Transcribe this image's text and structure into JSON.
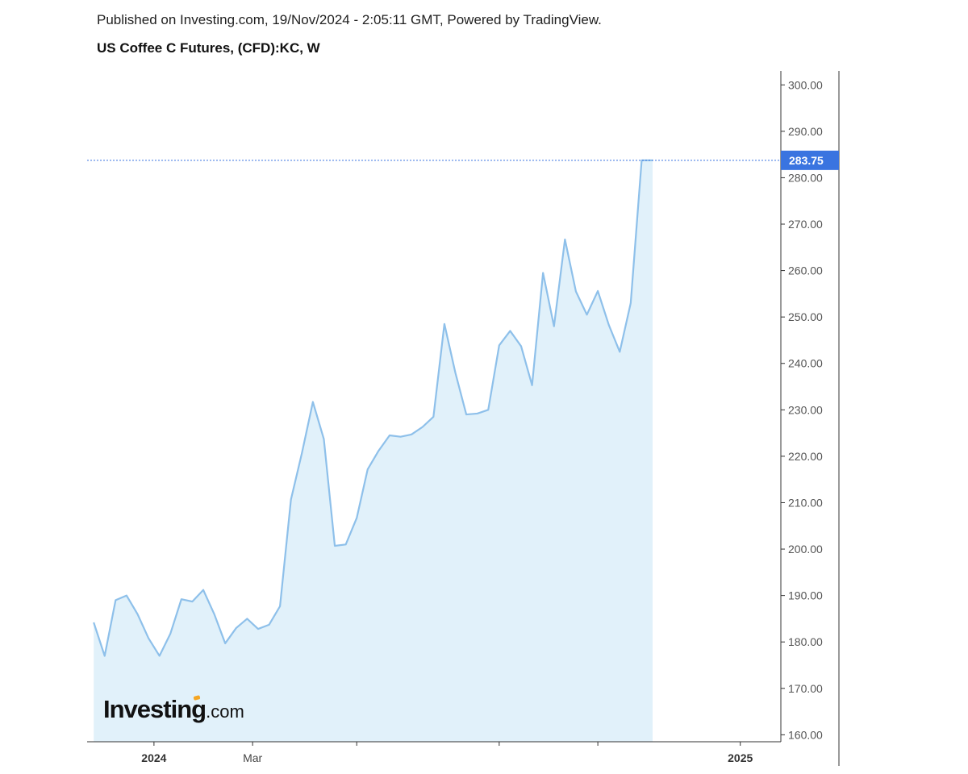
{
  "header": {
    "published": "Published on Investing.com, 19/Nov/2024 - 2:05:11 GMT, Powered by TradingView.",
    "title": "US Coffee C Futures, (CFD):KC, W"
  },
  "logo": {
    "main": "Investing",
    "suffix": ".com"
  },
  "colors": {
    "line": "#8ec0ea",
    "area": "#e1f1fa",
    "price_tag": "#3a74e0",
    "axis": "#333333"
  },
  "chart_data": {
    "type": "area",
    "title": "US Coffee C Futures, (CFD):KC, W",
    "xlabel": "",
    "ylabel": "",
    "ylim": [
      158.5,
      303
    ],
    "yticks": [
      160,
      170,
      180,
      190,
      200,
      210,
      220,
      230,
      240,
      250,
      260,
      270,
      280,
      290,
      300
    ],
    "y_tick_format": "0.00",
    "x_tick_labels": [
      {
        "label": "2024",
        "week": 5.5,
        "bold": true
      },
      {
        "label": "Mar",
        "week": 14.5,
        "bold": false
      },
      {
        "label": "",
        "week": 24,
        "bold": false
      },
      {
        "label": "",
        "week": 37,
        "bold": false
      },
      {
        "label": "",
        "week": 46,
        "bold": false
      },
      {
        "label": "2025",
        "week": 59,
        "bold": true
      }
    ],
    "x_range_weeks": [
      -0.6,
      62.7
    ],
    "grid": false,
    "last_price": 283.75,
    "last_price_label": "283.75",
    "series": [
      {
        "values": [
          184.2,
          177.0,
          189.0,
          190.0,
          186.0,
          180.8,
          177.0,
          181.8,
          189.2,
          188.7,
          191.2,
          186.0,
          179.7,
          183.0,
          185.0,
          182.8,
          183.7,
          187.7,
          210.7,
          220.7,
          231.7,
          223.7,
          200.7,
          201.0,
          206.7,
          217.2,
          221.2,
          224.5,
          224.2,
          224.7,
          226.3,
          228.5,
          248.5,
          238.0,
          229.0,
          229.2,
          230.0,
          243.9,
          247.0,
          243.7,
          235.3,
          259.5,
          248.0,
          266.7,
          255.5,
          250.5,
          255.6,
          248.3,
          242.5,
          253.0,
          283.75,
          283.75
        ]
      }
    ]
  }
}
